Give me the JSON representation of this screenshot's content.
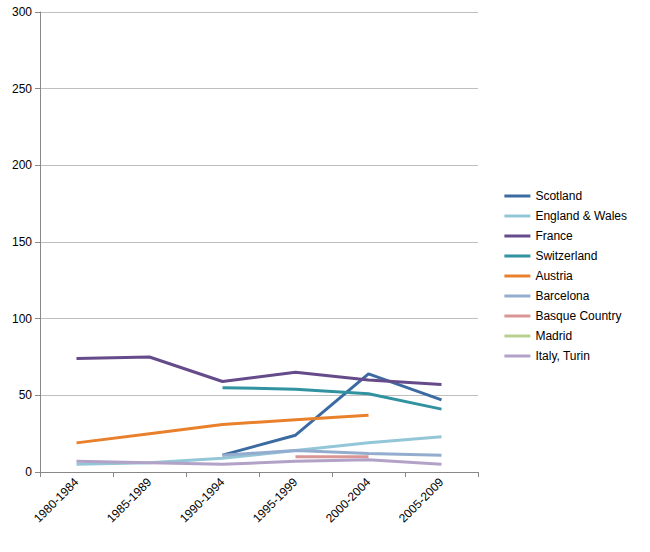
{
  "chart_data": {
    "type": "line",
    "categories": [
      "1980-1984",
      "1985-1989",
      "1990-1994",
      "1995-1999",
      "2000-2004",
      "2005-2009"
    ],
    "series": [
      {
        "name": "Scotland",
        "color": "#3b6ba1",
        "values": [
          null,
          null,
          11,
          24,
          64,
          47
        ]
      },
      {
        "name": "England & Wales",
        "color": "#93c6d6",
        "values": [
          5,
          6,
          9,
          14,
          19,
          23
        ]
      },
      {
        "name": "France",
        "color": "#664b8a",
        "values": [
          74,
          75,
          59,
          65,
          60,
          57
        ]
      },
      {
        "name": "Switzerland",
        "color": "#3193a0",
        "values": [
          null,
          null,
          55,
          54,
          51,
          41
        ]
      },
      {
        "name": "Austria",
        "color": "#e8802c",
        "values": [
          19,
          25,
          31,
          34,
          37,
          null
        ]
      },
      {
        "name": "Barcelona",
        "color": "#94adcf",
        "values": [
          null,
          null,
          11,
          14,
          12,
          11
        ]
      },
      {
        "name": "Basque Country",
        "color": "#d99694",
        "values": [
          null,
          null,
          null,
          10,
          10,
          null
        ]
      },
      {
        "name": "Madrid",
        "color": "#b9d08e",
        "values": [
          null,
          null,
          null,
          null,
          null,
          null
        ]
      },
      {
        "name": "Italy, Turin",
        "color": "#b3a2c7",
        "values": [
          7,
          6,
          5,
          7,
          8,
          5
        ]
      }
    ],
    "ylim": [
      0,
      300
    ],
    "yticks": [
      0,
      50,
      100,
      150,
      200,
      250,
      300
    ],
    "grid": true,
    "legend": "right"
  }
}
